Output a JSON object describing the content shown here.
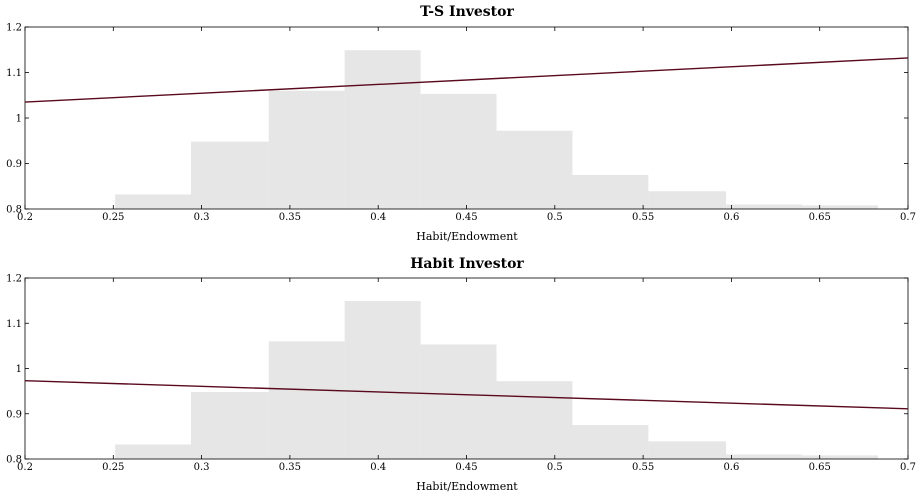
{
  "chart_data": [
    {
      "type": "bar",
      "title": "T-S Investor",
      "xlabel": "Habit/Endowment",
      "ylabel": "",
      "xlim": [
        0.2,
        0.7
      ],
      "ylim": [
        0.8,
        1.2
      ],
      "xticks": [
        "0.2",
        "0.25",
        "0.3",
        "0.35",
        "0.4",
        "0.45",
        "0.5",
        "0.55",
        "0.6",
        "0.65",
        "0.7"
      ],
      "yticks": [
        "0.8",
        "0.9",
        "1",
        "1.1",
        "1.2"
      ],
      "grid": false,
      "histogram": {
        "bin_edges": [
          0.251,
          0.294,
          0.338,
          0.381,
          0.424,
          0.467,
          0.51,
          0.553,
          0.597,
          0.64,
          0.683
        ],
        "heights": [
          0.832,
          0.948,
          1.06,
          1.149,
          1.053,
          0.972,
          0.875,
          0.839,
          0.81,
          0.808
        ],
        "color": "#e6e6e6"
      },
      "line": {
        "x": [
          0.2,
          0.7
        ],
        "y": [
          1.035,
          1.132
        ],
        "color": "#5a0a1e"
      }
    },
    {
      "type": "bar",
      "title": "Habit Investor",
      "xlabel": "Habit/Endowment",
      "ylabel": "",
      "xlim": [
        0.2,
        0.7
      ],
      "ylim": [
        0.8,
        1.2
      ],
      "xticks": [
        "0.2",
        "0.25",
        "0.3",
        "0.35",
        "0.4",
        "0.45",
        "0.5",
        "0.55",
        "0.6",
        "0.65",
        "0.7"
      ],
      "yticks": [
        "0.8",
        "0.9",
        "1",
        "1.1",
        "1.2"
      ],
      "grid": false,
      "histogram": {
        "bin_edges": [
          0.251,
          0.294,
          0.338,
          0.381,
          0.424,
          0.467,
          0.51,
          0.553,
          0.597,
          0.64,
          0.683
        ],
        "heights": [
          0.832,
          0.948,
          1.06,
          1.149,
          1.053,
          0.972,
          0.875,
          0.839,
          0.81,
          0.808
        ],
        "color": "#e6e6e6"
      },
      "line": {
        "x": [
          0.2,
          0.7
        ],
        "y": [
          0.973,
          0.911
        ],
        "color": "#5a0a1e"
      }
    }
  ]
}
